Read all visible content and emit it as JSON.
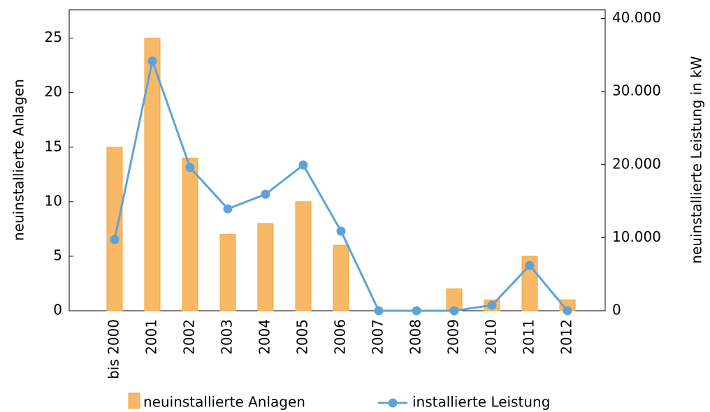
{
  "chart_data": {
    "type": "bar_line",
    "categories": [
      "bis 2000",
      "2001",
      "2002",
      "2003",
      "2004",
      "2005",
      "2006",
      "2007",
      "2008",
      "2009",
      "2010",
      "2011",
      "2012"
    ],
    "series": [
      {
        "name": "neuinstallierte Anlagen",
        "type": "bar",
        "color": "#f9b865",
        "values": [
          15,
          25,
          14,
          7,
          8,
          10,
          6,
          0,
          0,
          2,
          1,
          5,
          1
        ]
      },
      {
        "name": "installierte Leistung",
        "type": "line",
        "axis": "y2",
        "color": "#5ea3d8",
        "values": [
          9750,
          34200,
          19600,
          13950,
          15950,
          19950,
          10900,
          0,
          0,
          0,
          760,
          6200,
          0
        ]
      }
    ],
    "ylabel": "neuinstallierte Anlagen",
    "y2label": "neuinstallierte Leistung in kW",
    "ylim": [
      0,
      27.6
    ],
    "yticks": [
      0,
      5,
      10,
      15,
      20,
      25
    ],
    "y2lim": [
      0,
      41200
    ],
    "y2ticks": [
      0,
      {
        "value": 10000,
        "label": "10.000"
      },
      {
        "value": 20000,
        "label": "20.000"
      },
      {
        "value": 30000,
        "label": "30.000"
      },
      {
        "value": 40000,
        "label": "40.000"
      }
    ]
  }
}
